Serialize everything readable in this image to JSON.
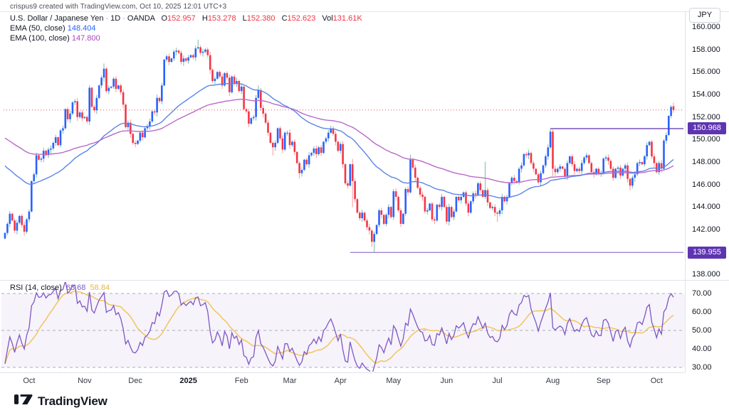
{
  "attribution": "crispus9 created with TradingView.com, Oct 10, 2025 12:01 UTC+3",
  "legend": {
    "title": "U.S. Dollar / Japanese Yen",
    "separator": "·",
    "interval": "1D",
    "exchange": "OANDA",
    "o_label": "O",
    "o_value": "152.957",
    "h_label": "H",
    "h_value": "153.278",
    "l_label": "L",
    "l_value": "152.380",
    "c_label": "C",
    "c_value": "152.623",
    "vol_label": "Vol",
    "vol_value": "131.61K",
    "ema50_label": "EMA (50, close)",
    "ema50_value": "148.404",
    "ema100_label": "EMA (100, close)",
    "ema100_value": "147.800",
    "rsi_label": "RSI (14, close)",
    "rsi_value": "68.68",
    "rsi_ma_value": "58.84"
  },
  "price_axis": {
    "currency": "JPY",
    "ticks": [
      "160.000",
      "158.000",
      "156.000",
      "154.000",
      "152.000",
      "150.000",
      "148.000",
      "146.000",
      "144.000",
      "142.000",
      "138.000"
    ],
    "badges": [
      {
        "label": "150.968",
        "value": 150.968,
        "color": "#5e35b1"
      },
      {
        "label": "139.955",
        "value": 139.955,
        "color": "#5e35b1"
      }
    ]
  },
  "rsi_axis": {
    "ticks": [
      "70.00",
      "60.00",
      "50.00",
      "40.00",
      "30.00"
    ]
  },
  "time_axis": {
    "labels": [
      {
        "text": "Oct",
        "index": 10
      },
      {
        "text": "Nov",
        "index": 33
      },
      {
        "text": "Dec",
        "index": 54
      },
      {
        "text": "2025",
        "index": 76,
        "bold": true
      },
      {
        "text": "Feb",
        "index": 98
      },
      {
        "text": "Mar",
        "index": 118
      },
      {
        "text": "Apr",
        "index": 139
      },
      {
        "text": "May",
        "index": 161
      },
      {
        "text": "Jun",
        "index": 183
      },
      {
        "text": "Jul",
        "index": 204
      },
      {
        "text": "Aug",
        "index": 227
      },
      {
        "text": "Sep",
        "index": 248
      },
      {
        "text": "Oct",
        "index": 270
      }
    ]
  },
  "footer": {
    "brand": "TradingView"
  },
  "colors": {
    "candle_up": "#2962ff",
    "candle_down": "#f23645",
    "wick_up": "#6ab3a8",
    "wick_down": "#f58f98",
    "ema50": "#5c85e6",
    "ema100": "#ba68c8",
    "rsi_line": "#7e57c2",
    "rsi_ma": "#f2c55c",
    "rsi_band": "#7e57c2",
    "level_dash": "#a9adb8",
    "price_line": "#f23645",
    "resistance_line": "#5e35b1",
    "support_line": "#9575cd",
    "separator": "#e0e3eb"
  },
  "chart_data": {
    "type": "candlestick",
    "title": "U.S. Dollar / Japanese Yen, 1D, OANDA",
    "x_range": [
      "Sep 2024",
      "Oct 10 2025"
    ],
    "y_range": [
      138,
      160
    ],
    "rsi_range": [
      30,
      70
    ],
    "grid": false,
    "first_open": 141.2,
    "closes": [
      141.7,
      142.5,
      143.4,
      142.8,
      141.9,
      142.6,
      143.2,
      142.4,
      141.8,
      142.9,
      143.6,
      146.3,
      146.9,
      148.6,
      148.2,
      148.3,
      149.0,
      148.6,
      149.1,
      149.2,
      149.7,
      150.2,
      149.5,
      150.8,
      151.0,
      152.7,
      151.8,
      152.3,
      153.3,
      153.4,
      152.0,
      152.4,
      151.9,
      152.0,
      151.6,
      154.6,
      152.9,
      152.6,
      153.7,
      154.8,
      155.5,
      156.3,
      154.3,
      154.6,
      154.7,
      155.4,
      154.5,
      154.8,
      154.2,
      153.1,
      151.1,
      151.5,
      150.5,
      149.7,
      149.6,
      149.9,
      150.6,
      150.2,
      151.0,
      151.2,
      151.6,
      152.5,
      152.4,
      153.7,
      153.4,
      154.8,
      157.1,
      157.4,
      156.9,
      157.2,
      157.8,
      157.9,
      157.7,
      156.9,
      157.2,
      157.0,
      157.3,
      157.5,
      157.3,
      158.1,
      158.2,
      157.7,
      157.8,
      158.0,
      157.5,
      156.2,
      155.2,
      155.4,
      156.0,
      155.6,
      154.8,
      155.9,
      155.5,
      154.2,
      155.6,
      155.0,
      155.2,
      154.3,
      154.7,
      152.7,
      152.5,
      151.4,
      151.9,
      152.0,
      153.7,
      154.4,
      152.8,
      152.3,
      151.5,
      150.6,
      149.7,
      149.3,
      149.7,
      151.0,
      150.1,
      149.1,
      150.6,
      150.6,
      149.5,
      149.8,
      148.9,
      147.9,
      147.0,
      147.3,
      148.2,
      147.8,
      148.6,
      148.8,
      149.2,
      148.7,
      149.3,
      148.8,
      149.8,
      150.1,
      150.6,
      151.0,
      150.5,
      149.8,
      149.0,
      149.6,
      147.8,
      146.1,
      145.9,
      147.8,
      146.3,
      144.7,
      143.5,
      143.0,
      143.5,
      142.8,
      142.2,
      141.9,
      140.9,
      141.6,
      142.4,
      143.7,
      143.3,
      142.5,
      143.3,
      144.0,
      143.1,
      145.4,
      144.9,
      143.7,
      142.5,
      143.4,
      145.6,
      145.3,
      148.2,
      147.5,
      146.6,
      145.7,
      145.1,
      144.9,
      143.6,
      143.7,
      144.3,
      142.9,
      142.8,
      144.2,
      144.0,
      144.9,
      144.0,
      142.7,
      144.0,
      143.1,
      143.6,
      144.9,
      144.6,
      144.9,
      145.3,
      144.3,
      143.5,
      144.5,
      145.2,
      145.1,
      146.1,
      145.5,
      144.9,
      145.5,
      144.4,
      143.9,
      144.0,
      143.5,
      143.4,
      143.7,
      144.9,
      144.5,
      144.9,
      146.1,
      146.6,
      146.3,
      146.2,
      147.4,
      147.7,
      148.7,
      148.6,
      148.8,
      147.9,
      147.4,
      146.9,
      146.2,
      147.0,
      147.7,
      148.5,
      149.3,
      150.7,
      147.4,
      147.1,
      147.4,
      147.6,
      147.4,
      146.7,
      147.9,
      148.5,
      147.8,
      147.2,
      147.4,
      147.2,
      147.9,
      148.4,
      148.6,
      147.9,
      147.1,
      146.9,
      147.4,
      147.0,
      147.0,
      148.3,
      148.4,
      148.1,
      147.4,
      146.6,
      147.4,
      147.5,
      146.8,
      147.4,
      147.7,
      146.5,
      145.9,
      146.6,
      146.9,
      147.9,
      148.0,
      147.8,
      148.5,
      149.5,
      149.8,
      148.5,
      147.9,
      147.1,
      147.9,
      147.4,
      149.9,
      150.4,
      152.1,
      152.9,
      152.6
    ],
    "wick_overrides": {
      "41": {
        "h": 156.75
      },
      "80": {
        "h": 158.88
      },
      "105": {
        "h": 154.8
      },
      "111": {
        "l": 148.57
      },
      "122": {
        "l": 146.54
      },
      "135": {
        "h": 151.21
      },
      "144": {
        "h": 148.28,
        "l": 143.98
      },
      "152": {
        "l": 140.45
      },
      "153": {
        "l": 139.96
      },
      "168": {
        "h": 148.65
      },
      "199": {
        "h": 148.02
      },
      "204": {
        "l": 142.68
      },
      "226": {
        "h": 150.95
      },
      "227": {
        "l": 146.75
      },
      "259": {
        "l": 145.48
      },
      "277": {
        "o": 152.957,
        "h": 153.278,
        "l": 152.38,
        "c": 152.623
      }
    },
    "overlays": {
      "last_price_line": 152.623,
      "resistance": {
        "price": 150.968,
        "start_index": 226
      },
      "support": {
        "price": 139.955,
        "start_index": 143
      }
    },
    "emas": [
      {
        "period": 50,
        "seed": 147.9,
        "last_value": 148.404
      },
      {
        "period": 100,
        "seed": 150.3,
        "last_value": 147.8
      }
    ],
    "rsi": {
      "period": 14,
      "ma_period": 14,
      "levels": [
        70,
        50,
        30
      ],
      "seed_gain": 0.16,
      "seed_loss": 0.34,
      "last_value": 68.68,
      "ma_last_value": 58.84
    }
  }
}
